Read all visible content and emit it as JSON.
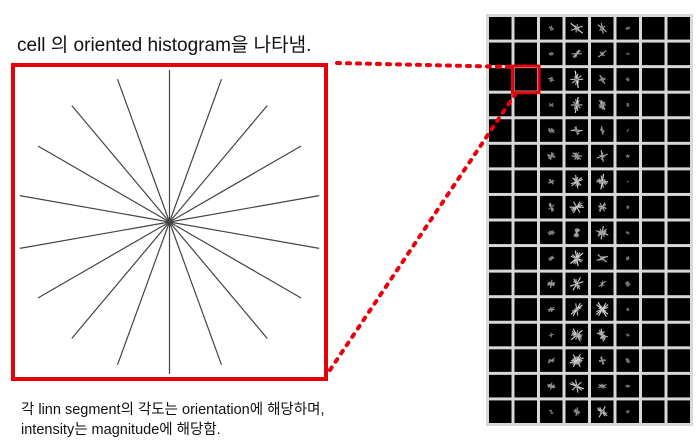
{
  "title": "cell 의 oriented histogram을 나타냄.",
  "caption": {
    "line1": "각 linn segment의 각도는 orientation에 해당하며,",
    "line2": "intensity는 magnitude에 해당함."
  },
  "histogram": {
    "orientation_bins": 18,
    "line_color": "#444444"
  },
  "hog_grid": {
    "columns": 8,
    "rows": 16,
    "highlighted_cell": {
      "row": 2,
      "col": 1
    }
  },
  "colors": {
    "highlight": "#e8000a",
    "grid_line": "#d8d8d8",
    "cell_background": "#000000"
  }
}
